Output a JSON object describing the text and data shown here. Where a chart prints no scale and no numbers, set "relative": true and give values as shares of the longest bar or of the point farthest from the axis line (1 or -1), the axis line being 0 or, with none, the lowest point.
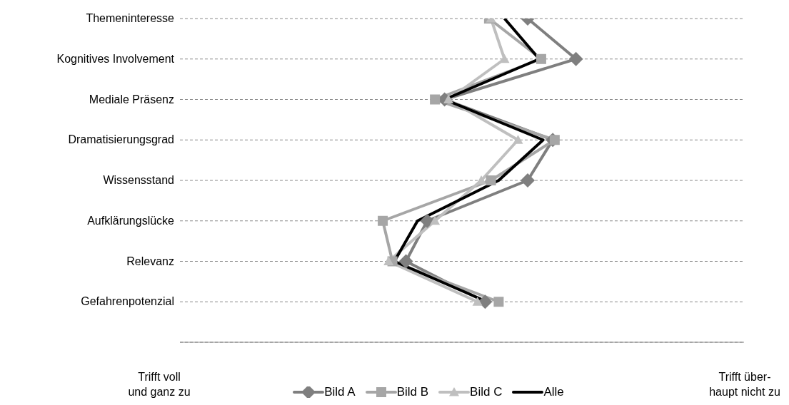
{
  "chart_data": {
    "type": "line",
    "orientation": "horizontal",
    "relative": true,
    "categories": [
      "Themeninteresse",
      "Kognitives Involvement",
      "Mediale Präsenz",
      "Dramatisierungsgrad",
      "Wissensstand",
      "Aufklärungslücke",
      "Relevanz",
      "Gefahrenpotenzial"
    ],
    "annotations": [
      "Trifft voll\nund ganz zu",
      "Trifft über-\nhaupt nicht zu"
    ],
    "series": [
      {
        "name": "Bild A",
        "color": "#7f7f7f",
        "marker": "diamond",
        "values": [
          0.75,
          1,
          0.32,
          0.88,
          0.75,
          0.23,
          0.12,
          0.53
        ]
      },
      {
        "name": "Bild B",
        "color": "#a6a6a6",
        "marker": "square",
        "values": [
          0.55,
          0.82,
          0.27,
          0.89,
          0.56,
          0,
          0.05,
          0.6
        ]
      },
      {
        "name": "Bild C",
        "color": "#bfbfbf",
        "marker": "triangle",
        "values": [
          0.56,
          0.63,
          0.34,
          0.7,
          0.51,
          0.27,
          0.03,
          0.49
        ]
      },
      {
        "name": "Alle",
        "color": "#000000",
        "marker": "none",
        "values": [
          0.63,
          0.81,
          0.32,
          0.83,
          0.6,
          0.18,
          0.06,
          0.54
        ]
      }
    ],
    "grid": "y",
    "legend": "bottom",
    "line_style": "solid"
  }
}
